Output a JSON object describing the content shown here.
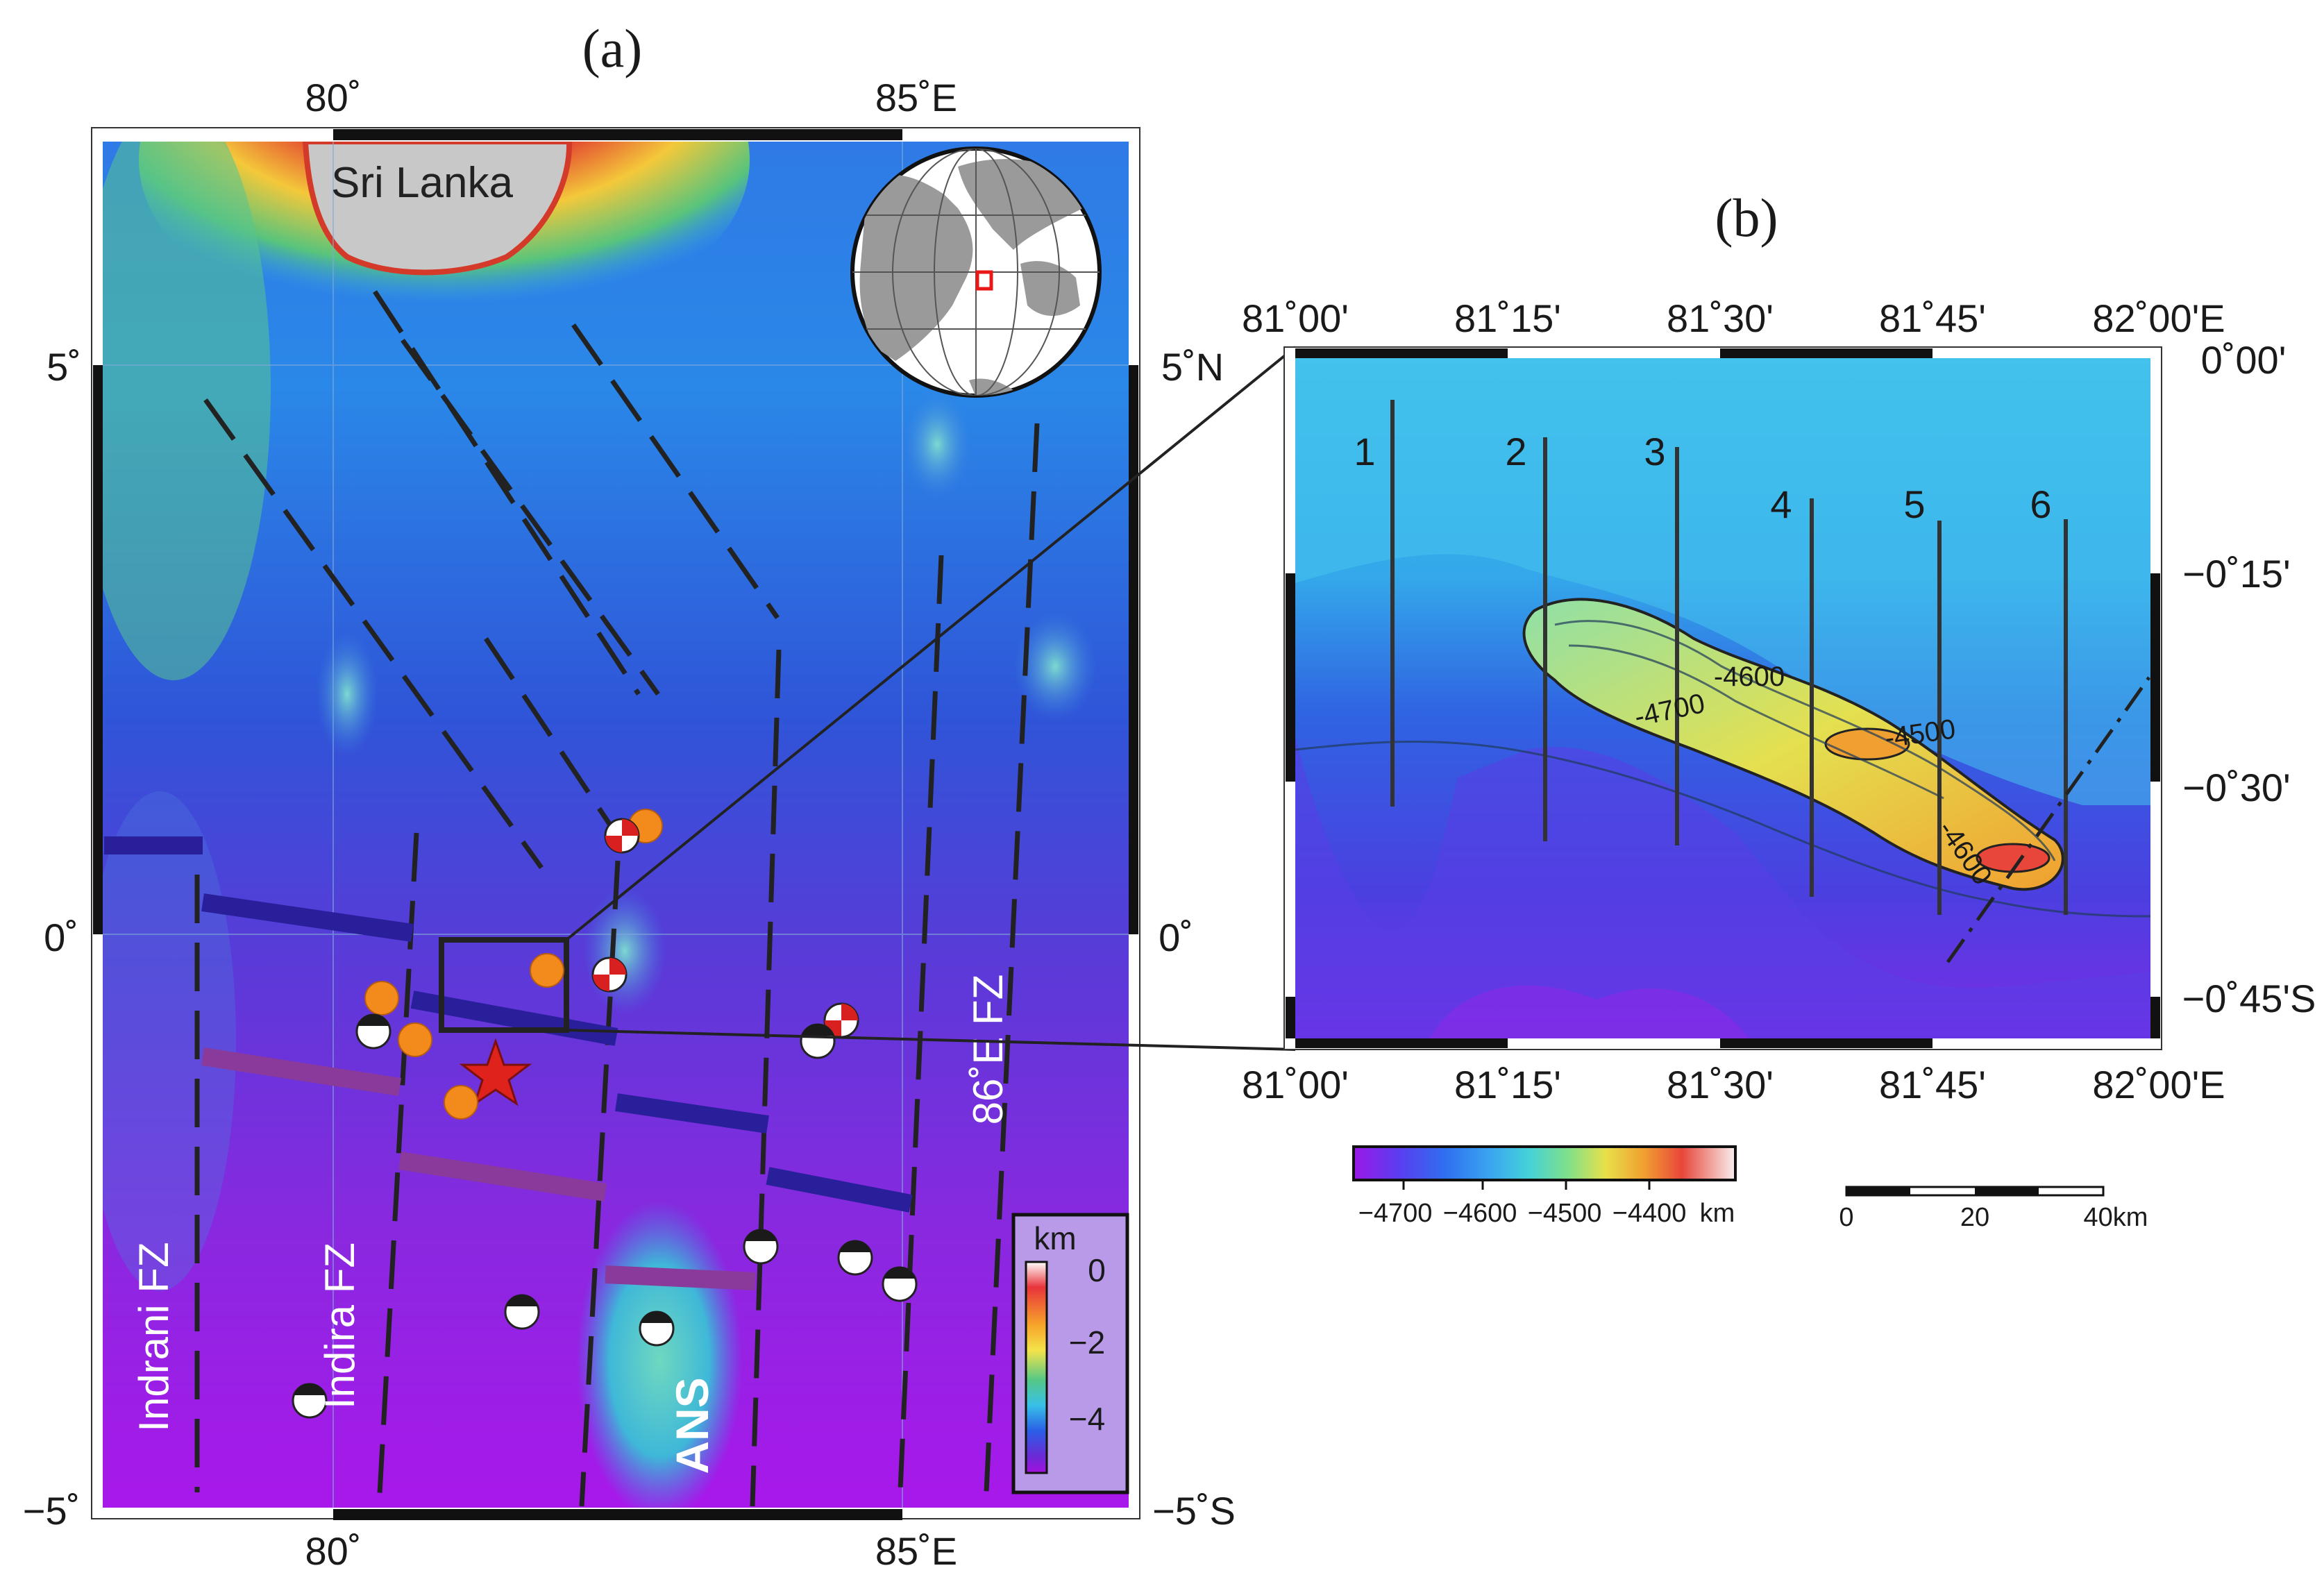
{
  "panel_a": {
    "label": "(a)",
    "lon_ticks_top": [
      "80˚",
      "85˚E"
    ],
    "lon_ticks_bottom": [
      "80˚",
      "85˚E"
    ],
    "lat_ticks_left": [
      "5˚",
      "0˚",
      "−5˚"
    ],
    "lat_ticks_right": [
      "5˚N",
      "0˚",
      "−5˚S"
    ],
    "place_labels": {
      "sri_lanka": "Sri Lanka",
      "indrani_fz": "Indrani FZ",
      "indira_fz": "Indira FZ",
      "fz_86e": "86˚E FZ",
      "ans": "ANS"
    },
    "colorbar": {
      "unit": "km",
      "ticks": [
        "0",
        "−2",
        "−4"
      ],
      "colors": [
        "#ffffff",
        "#e8343b",
        "#f7a52a",
        "#f4e34a",
        "#54c886",
        "#38c0e8",
        "#2a5fe6",
        "#6a2ad6",
        "#a410e0"
      ]
    },
    "inset_globe": {
      "type": "orthographic",
      "highlight_color": "#e81818"
    },
    "symbols": {
      "epicenter_star_color": "#e0221c",
      "orange_circle_color": "#f28a1c",
      "mechanism_red_color": "#d82020",
      "mechanism_black_color": "#1a1a1a"
    }
  },
  "panel_b": {
    "label": "(b)",
    "lon_ticks_top": [
      "81˚00'",
      "81˚15'",
      "81˚30'",
      "81˚45'",
      "82˚00'E"
    ],
    "lon_ticks_bottom": [
      "81˚00'",
      "81˚15'",
      "81˚30'",
      "81˚45'",
      "82˚00'E"
    ],
    "lat_ticks_right": [
      "0˚00'",
      "−0˚15'",
      "−0˚30'",
      "−0˚45'S"
    ],
    "profile_labels": [
      "1",
      "2",
      "3",
      "4",
      "5",
      "6"
    ],
    "contour_labels": [
      "-4600",
      "-4700",
      "-4500",
      "-4600"
    ],
    "colorbar": {
      "ticks": [
        "−4700",
        "−4600",
        "−4500",
        "−4400"
      ],
      "unit": "km",
      "colors": [
        "#9a18e8",
        "#5a3ef0",
        "#2f6ff0",
        "#3aa6f0",
        "#45d2d8",
        "#7ee08a",
        "#e8e04a",
        "#f0a030",
        "#e8463a",
        "#f4e4e4"
      ]
    },
    "scale_bar": {
      "ticks": [
        "0",
        "20"
      ],
      "end_label": "40km"
    }
  }
}
